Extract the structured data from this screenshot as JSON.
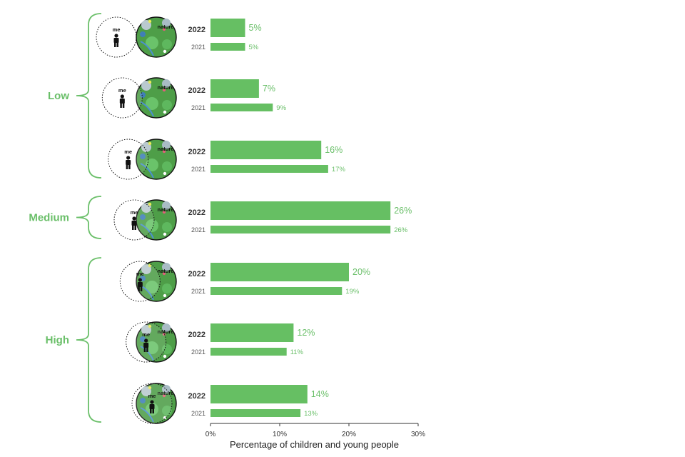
{
  "chart_data": {
    "type": "bar",
    "orientation": "horizontal",
    "xlabel": "Percentage of children and young people",
    "xlim": [
      0,
      30
    ],
    "xticks": [
      "0%",
      "10%",
      "20%",
      "30%"
    ],
    "series_names": [
      "2022",
      "2021"
    ],
    "circle_labels": {
      "me": "me",
      "nature": "nature"
    },
    "groups": [
      {
        "label": "Low",
        "rows": [
          0,
          1,
          2
        ]
      },
      {
        "label": "Medium",
        "rows": [
          3
        ]
      },
      {
        "label": "High",
        "rows": [
          4,
          5,
          6
        ]
      }
    ],
    "rows": [
      {
        "level": 1,
        "v2022": 5,
        "v2021": 5,
        "l2022": "5%",
        "l2021": "5%"
      },
      {
        "level": 2,
        "v2022": 7,
        "v2021": 9,
        "l2022": "7%",
        "l2021": "9%"
      },
      {
        "level": 3,
        "v2022": 16,
        "v2021": 17,
        "l2022": "16%",
        "l2021": "17%"
      },
      {
        "level": 4,
        "v2022": 26,
        "v2021": 26,
        "l2022": "26%",
        "l2021": "26%"
      },
      {
        "level": 5,
        "v2022": 20,
        "v2021": 19,
        "l2022": "20%",
        "l2021": "19%"
      },
      {
        "level": 6,
        "v2022": 12,
        "v2021": 11,
        "l2022": "12%",
        "l2021": "11%"
      },
      {
        "level": 7,
        "v2022": 14,
        "v2021": 13,
        "l2022": "14%",
        "l2021": "13%"
      }
    ],
    "colors": {
      "bar": "#66bf63",
      "label": "#6abf69",
      "nature_fill": "#4e9e48"
    }
  }
}
